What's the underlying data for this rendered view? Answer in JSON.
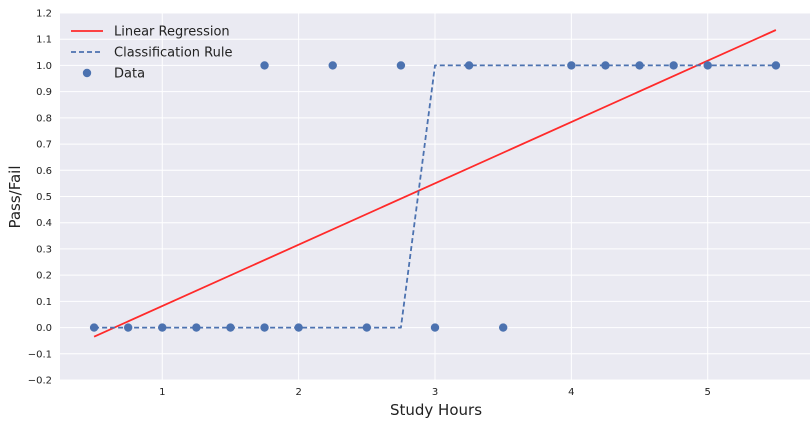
{
  "chart_data": {
    "type": "line",
    "title": "",
    "xlabel": "Study Hours",
    "ylabel": "Pass/Fail",
    "xlim": [
      0.25,
      5.75
    ],
    "ylim": [
      -0.2,
      1.2
    ],
    "xticks": [
      1,
      2,
      3,
      4,
      5
    ],
    "yticks": [
      -0.2,
      -0.1,
      0.0,
      0.1,
      0.2,
      0.3,
      0.4,
      0.5,
      0.6,
      0.7,
      0.8,
      0.9,
      1.0,
      1.1,
      1.2
    ],
    "ytick_labels": [
      "−0.2",
      "−0.1",
      "0.0",
      "0.1",
      "0.2",
      "0.3",
      "0.4",
      "0.5",
      "0.6",
      "0.7",
      "0.8",
      "0.9",
      "1.0",
      "1.1",
      "1.2"
    ],
    "grid": true,
    "legend_position": "top-left",
    "series": [
      {
        "name": "Linear Regression",
        "kind": "line",
        "style": "solid",
        "color": "#ff2a2a",
        "x": [
          0.5,
          5.5
        ],
        "y": [
          -0.035,
          1.135
        ]
      },
      {
        "name": "Classification Rule",
        "kind": "line",
        "style": "dashed",
        "color": "#4c72b0",
        "x": [
          0.5,
          2.75,
          3.0,
          5.5
        ],
        "y": [
          0.0,
          0.0,
          1.0,
          1.0
        ]
      },
      {
        "name": "Data",
        "kind": "scatter",
        "color": "#4c72b0",
        "x": [
          0.5,
          0.75,
          1.0,
          1.25,
          1.5,
          1.75,
          1.75,
          2.0,
          2.25,
          2.5,
          2.75,
          3.0,
          3.25,
          3.5,
          4.0,
          4.25,
          4.5,
          4.75,
          5.0,
          5.5
        ],
        "y": [
          0,
          0,
          0,
          0,
          0,
          0,
          1,
          0,
          1,
          0,
          1,
          0,
          1,
          0,
          1,
          1,
          1,
          1,
          1,
          1
        ]
      }
    ]
  }
}
